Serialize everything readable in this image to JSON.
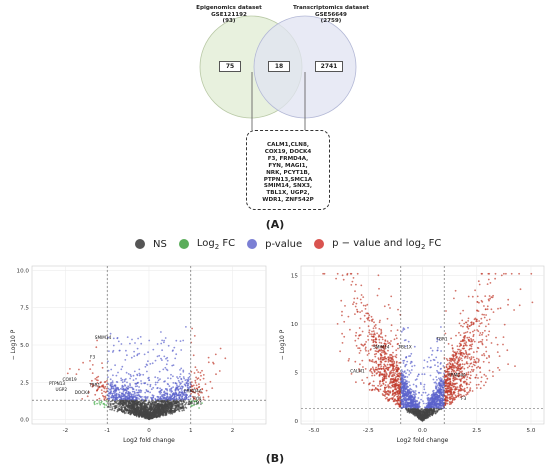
{
  "venn": {
    "left_title": "Epigenomics dataset",
    "left_id": "GSE121192",
    "left_total": "(93)",
    "right_title": "Transcriptomics dataset",
    "right_id": "GSE56649",
    "right_total": "(2759)",
    "left_only": "75",
    "overlap": "18",
    "right_only": "2741",
    "left_color": "#e6f0da",
    "right_color": "#e0e3f2",
    "genes": "CALM1,CLN8,\nCOX19, DOCK4\nF3, FRMD4A,\nFYN, MAGI1,\nNRK, PCYT1B,\nPTPN13,SMC1A\nSMIM14, SNX3,\nTBL1X, UGP2,\nWDR1, ZNF542P"
  },
  "panel_a_label": "(A)",
  "panel_b_label": "(B)",
  "legend": [
    {
      "label": "NS",
      "color": "#555555"
    },
    {
      "label": "Log",
      "sub": "2",
      "suffix": " FC",
      "color": "#5aad5a"
    },
    {
      "label": "p-value",
      "color": "#7b7fd4"
    },
    {
      "label": "p − value and log",
      "sub": "2",
      "suffix": " FC",
      "color": "#d9534f"
    }
  ],
  "chart_data": [
    {
      "type": "scatter",
      "subtype": "volcano",
      "xlabel": "Log2 fold change",
      "ylabel": "− Log10 P",
      "xlim": [
        -2.8,
        2.8
      ],
      "ylim": [
        -0.3,
        10.3
      ],
      "xticks": [
        "-2",
        "-1",
        "0",
        "1",
        "2"
      ],
      "yticks": [
        "0.0",
        "2.5",
        "5.0",
        "7.5",
        "10.0"
      ],
      "fc_cutoffs": [
        -1,
        1
      ],
      "p_cutoff": 1.3,
      "labels": [
        {
          "text": "SMIM14",
          "x": -1.1,
          "y": 5.4
        },
        {
          "text": "F3",
          "x": -1.35,
          "y": 4.1
        },
        {
          "text": "COX19",
          "x": -1.9,
          "y": 2.6
        },
        {
          "text": "PTPN13",
          "x": -2.2,
          "y": 2.3
        },
        {
          "text": "UGP2",
          "x": -2.1,
          "y": 1.9
        },
        {
          "text": "DOCK4",
          "x": -1.6,
          "y": 1.7
        },
        {
          "text": "TBR1",
          "x": -1.3,
          "y": 2.2
        },
        {
          "text": "FRMD4A",
          "x": 1.05,
          "y": 1.8
        },
        {
          "text": "FYN",
          "x": 1.15,
          "y": 1.3
        },
        {
          "text": "CALM1",
          "x": 1.1,
          "y": 1.0
        }
      ]
    },
    {
      "type": "scatter",
      "subtype": "volcano",
      "xlabel": "Log2 fold change",
      "ylabel": "− Log10 P",
      "xlim": [
        -5.6,
        5.6
      ],
      "ylim": [
        -0.3,
        16.0
      ],
      "xticks": [
        "-5.0",
        "-2.5",
        "0.0",
        "2.5",
        "5.0"
      ],
      "yticks": [
        "0",
        "5",
        "10",
        "15"
      ],
      "fc_cutoffs": [
        -1,
        1
      ],
      "p_cutoff": 1.3,
      "labels": [
        {
          "text": "TBR1",
          "x": 0.9,
          "y": 8.3
        },
        {
          "text": "SMIM14",
          "x": -1.9,
          "y": 7.5
        },
        {
          "text": "TBL1X",
          "x": -0.8,
          "y": 7.5
        },
        {
          "text": "CALM1",
          "x": -3.0,
          "y": 5.0
        },
        {
          "text": "FRMD4A",
          "x": 1.6,
          "y": 4.6
        },
        {
          "text": "F3",
          "x": 1.9,
          "y": 2.2
        }
      ]
    }
  ]
}
